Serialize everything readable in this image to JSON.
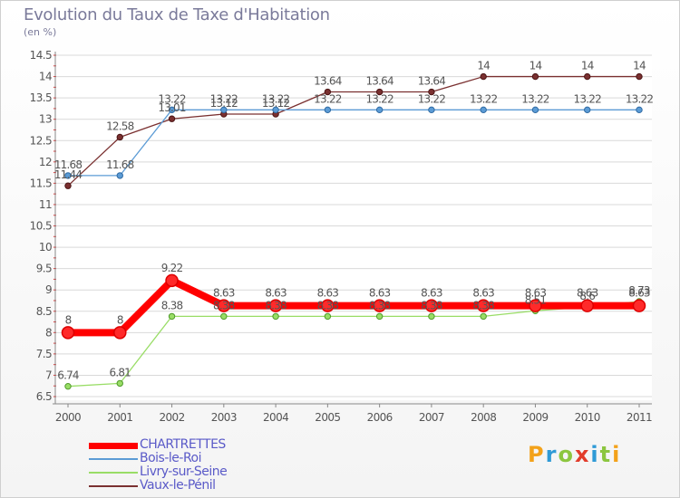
{
  "header": {
    "title": "Evolution du Taux de Taxe d'Habitation",
    "unit": "(en %)"
  },
  "logo": {
    "letters": [
      "P",
      "r",
      "o",
      "x",
      "i",
      "t",
      "i"
    ],
    "colors": [
      "#f3a21a",
      "#2f9ad6",
      "#8cc63f",
      "#e23c2b",
      "#2f9ad6",
      "#8cc63f",
      "#f3a21a"
    ]
  },
  "chart_data": {
    "type": "line",
    "title": "Evolution du Taux de Taxe d'Habitation",
    "ylabel": "(en %)",
    "xlabel": "",
    "x": [
      "2000",
      "2001",
      "2002",
      "2003",
      "2004",
      "2005",
      "2006",
      "2007",
      "2008",
      "2009",
      "2010",
      "2011"
    ],
    "ylim": [
      6.5,
      14.5
    ],
    "yticks": [
      "6.5",
      "7",
      "7.5",
      "8",
      "8.5",
      "9",
      "9.5",
      "10",
      "10.5",
      "11",
      "11.5",
      "12",
      "12.5",
      "13",
      "13.5",
      "14",
      "14.5"
    ],
    "legend_position": "bottom-left",
    "series": [
      {
        "name": "CHARTRETTES",
        "color": "#ff0000",
        "values": [
          8,
          8,
          9.22,
          8.63,
          8.63,
          8.63,
          8.63,
          8.63,
          8.63,
          8.63,
          8.63,
          8.63
        ],
        "labels": [
          "8",
          "8",
          "9.22",
          "8.63",
          "8.63",
          "8.63",
          "8.63",
          "8.63",
          "8.63",
          "8.63",
          "8.63",
          "8.63"
        ]
      },
      {
        "name": "Bois-le-Roi",
        "color": "#5b9bd5",
        "values": [
          11.68,
          11.68,
          13.22,
          13.22,
          13.22,
          13.22,
          13.22,
          13.22,
          13.22,
          13.22,
          13.22,
          13.22
        ],
        "labels": [
          "11.68",
          "11.68",
          "13.22",
          "13.22",
          "13.22",
          "13.22",
          "13.22",
          "13.22",
          "13.22",
          "13.22",
          "13.22",
          "13.22"
        ]
      },
      {
        "name": "Livry-sur-Seine",
        "color": "#99dd66",
        "values": [
          6.74,
          6.81,
          8.38,
          8.38,
          8.38,
          8.38,
          8.38,
          8.38,
          8.38,
          8.51,
          8.6,
          8.73
        ],
        "labels": [
          "6.74",
          "6.81",
          "8.38",
          "8.38",
          "8.38",
          "8.38",
          "8.38",
          "8.38",
          "8.38",
          "8.51",
          "8.6",
          "8.73"
        ]
      },
      {
        "name": "Vaux-le-Pénil",
        "color": "#7a3030",
        "values": [
          11.44,
          12.58,
          13.01,
          13.12,
          13.12,
          13.64,
          13.64,
          13.64,
          14,
          14,
          14,
          14
        ],
        "labels": [
          "11.44",
          "12.58",
          "13.01",
          "13.12",
          "13.12",
          "13.64",
          "13.64",
          "13.64",
          "14",
          "14",
          "14",
          "14"
        ]
      }
    ]
  }
}
